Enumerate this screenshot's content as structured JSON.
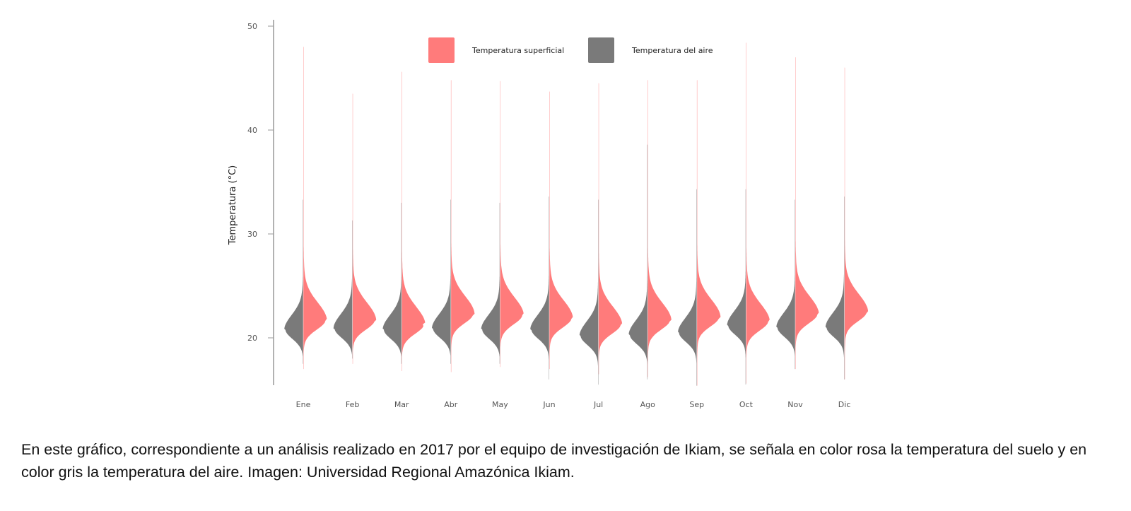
{
  "chart_data": {
    "type": "violin",
    "title": "",
    "xlabel": "",
    "ylabel": "Temperatura (°C)",
    "ylim": [
      15.4,
      50.6
    ],
    "yticks": [
      20,
      30,
      40,
      50
    ],
    "categories": [
      "Ene",
      "Feb",
      "Mar",
      "Abr",
      "May",
      "Jun",
      "Jul",
      "Ago",
      "Sep",
      "Oct",
      "Nov",
      "Dic"
    ],
    "legend_position": "top-right",
    "series": [
      {
        "name": "Temperatura superficial",
        "color": "#ff7b7b",
        "side": "right",
        "min": [
          17,
          17.5,
          16.8,
          16.7,
          17.2,
          17,
          16.5,
          16.2,
          15.4,
          15.6,
          17,
          16
        ],
        "mode": [
          21.7,
          21.7,
          21.3,
          22.3,
          22.2,
          21.9,
          21.3,
          21.7,
          22,
          21.6,
          22.3,
          22.5
        ],
        "max": [
          48,
          43.5,
          45.6,
          44.8,
          44.7,
          43.7,
          44.5,
          44.8,
          44.8,
          48.4,
          47,
          46
        ]
      },
      {
        "name": "Temperatura del aire",
        "color": "#7a7a7a",
        "side": "left",
        "min": [
          17.5,
          18,
          17.5,
          17.5,
          17.5,
          16,
          15.5,
          16,
          15.4,
          15.5,
          17,
          16
        ],
        "mode": [
          20.8,
          20.9,
          20.8,
          20.9,
          20.8,
          20.8,
          20.2,
          20.3,
          20.5,
          21.2,
          21,
          21
        ],
        "max": [
          33.3,
          31.3,
          33,
          33.3,
          33,
          33.6,
          33.3,
          38.6,
          34.3,
          34.3,
          33.3,
          33.6
        ]
      }
    ]
  },
  "caption": "En este gráfico, correspondiente a un análisis realizado en 2017 por el equipo de investigación de Ikiam, se señala en color rosa la temperatura del suelo y en color gris la temperatura del aire. Imagen: Universidad Regional Amazónica Ikiam."
}
